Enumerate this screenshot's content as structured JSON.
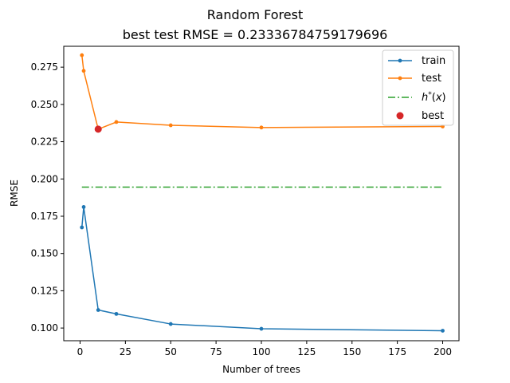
{
  "chart_data": {
    "type": "line",
    "title": "Random Forest",
    "subtitle": "best test RMSE = 0.23336784759179696",
    "xlabel": "Number of trees",
    "ylabel": "RMSE",
    "xlim": [
      -9,
      209
    ],
    "ylim": [
      0.0915,
      0.289
    ],
    "x_ticks": [
      0,
      25,
      50,
      75,
      100,
      125,
      150,
      175,
      200
    ],
    "y_ticks": [
      0.1,
      0.125,
      0.15,
      0.175,
      0.2,
      0.225,
      0.25,
      0.275
    ],
    "x_tick_labels": [
      "0",
      "25",
      "50",
      "75",
      "100",
      "125",
      "150",
      "175",
      "200"
    ],
    "y_tick_labels": [
      "0.100",
      "0.125",
      "0.150",
      "0.175",
      "0.200",
      "0.225",
      "0.250",
      "0.275"
    ],
    "grid": false,
    "legend_position": "top-right",
    "series": [
      {
        "name": "train",
        "color": "#1f77b4",
        "style": "line-marker",
        "x": [
          1,
          2,
          10,
          20,
          50,
          100,
          200
        ],
        "y": [
          0.1675,
          0.1812,
          0.1121,
          0.1095,
          0.1027,
          0.0995,
          0.0982
        ]
      },
      {
        "name": "test",
        "color": "#ff7f0e",
        "style": "line-marker",
        "x": [
          1,
          2,
          10,
          20,
          50,
          100,
          200
        ],
        "y": [
          0.283,
          0.2725,
          0.2334,
          0.2382,
          0.236,
          0.2345,
          0.2352
        ]
      },
      {
        "name": "h*(x)",
        "color": "#2ca02c",
        "style": "dashdot",
        "x": [
          1,
          200
        ],
        "y": [
          0.1945,
          0.1945
        ]
      },
      {
        "name": "best",
        "color": "#d62728",
        "style": "point",
        "x": [
          10
        ],
        "y": [
          0.2334
        ]
      }
    ]
  }
}
